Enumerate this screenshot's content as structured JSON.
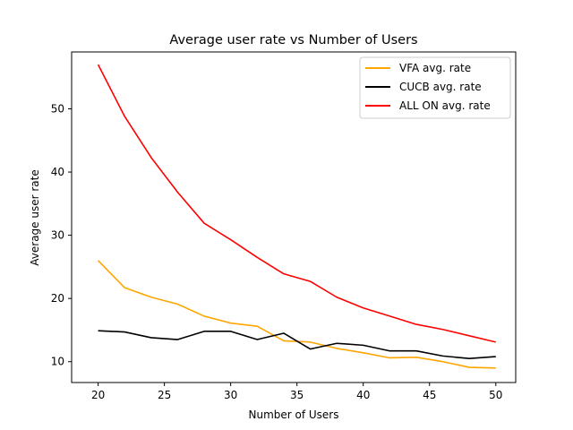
{
  "chart_data": {
    "type": "line",
    "title": "Average user rate vs Number of Users",
    "xlabel": "Number of Users",
    "ylabel": "Average user rate",
    "xlim": [
      18,
      51.5
    ],
    "ylim": [
      6.7,
      59
    ],
    "xticks": [
      20,
      25,
      30,
      35,
      40,
      45,
      50
    ],
    "yticks": [
      10,
      20,
      30,
      40,
      50
    ],
    "grid": false,
    "legend_position": "top-right",
    "x": [
      20,
      22,
      24,
      26,
      28,
      30,
      32,
      34,
      36,
      38,
      40,
      42,
      44,
      46,
      48,
      50
    ],
    "series": [
      {
        "name": "VFA avg. rate",
        "color": "#ffa500",
        "values": [
          26.0,
          21.7,
          20.2,
          19.1,
          17.2,
          16.1,
          15.6,
          13.3,
          13.1,
          12.1,
          11.4,
          10.6,
          10.7,
          10.0,
          9.1,
          9.0
        ]
      },
      {
        "name": "CUCB avg. rate",
        "color": "#000000",
        "values": [
          14.9,
          14.7,
          13.8,
          13.5,
          14.8,
          14.8,
          13.5,
          14.5,
          12.0,
          12.9,
          12.6,
          11.7,
          11.7,
          10.9,
          10.5,
          10.8
        ]
      },
      {
        "name": "ALL ON avg. rate",
        "color": "#ff0000",
        "values": [
          57.0,
          48.8,
          42.3,
          36.8,
          31.9,
          29.3,
          26.5,
          23.9,
          22.7,
          20.2,
          18.5,
          17.2,
          15.9,
          15.1,
          14.1,
          13.1
        ]
      }
    ]
  }
}
